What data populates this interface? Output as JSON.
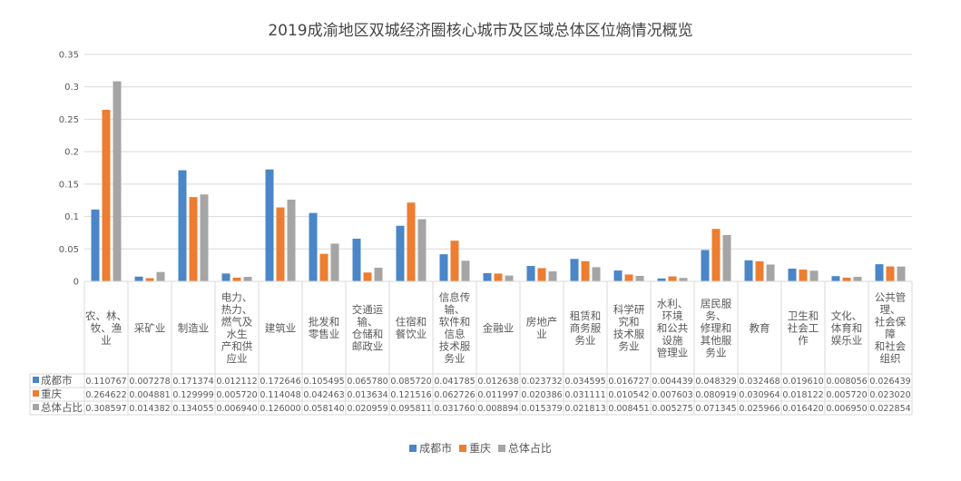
{
  "chart_data": {
    "type": "bar",
    "title": "2019成渝地区双城经济圈核心城市及区域总体区位熵情况概览",
    "xlabel": "",
    "ylabel": "",
    "ylim": [
      0,
      0.35
    ],
    "yticks": [
      "0",
      "0.05",
      "0.1",
      "0.15",
      "0.2",
      "0.25",
      "0.3",
      "0.35"
    ],
    "grid": true,
    "legend_position": "bottom",
    "data_table": true,
    "categories": [
      [
        "农、林、",
        "牧、渔",
        "业"
      ],
      [
        "采矿业"
      ],
      [
        "制造业"
      ],
      [
        "电力、",
        "热力、",
        "燃气及",
        "水生",
        "产和供",
        "应业"
      ],
      [
        "建筑业"
      ],
      [
        "批发和",
        "零售业"
      ],
      [
        "交通运",
        "输、",
        "仓储和",
        "邮政业"
      ],
      [
        "住宿和",
        "餐饮业"
      ],
      [
        "信息传",
        "输、",
        "软件和",
        "信息",
        "技术服",
        "务业"
      ],
      [
        "金融业"
      ],
      [
        "房地产",
        "业"
      ],
      [
        "租赁和",
        "商务服",
        "务业"
      ],
      [
        "科学研",
        "究和",
        "技术服",
        "务业"
      ],
      [
        "水利、",
        "环境",
        "和公共",
        "设施",
        "管理业"
      ],
      [
        "居民服",
        "务、",
        "修理和",
        "其他服",
        "务业"
      ],
      [
        "教育"
      ],
      [
        "卫生和",
        "社会工",
        "作"
      ],
      [
        "文化、",
        "体育和",
        "娱乐业"
      ],
      [
        "公共管",
        "理、",
        "社会保",
        "障",
        "和社会",
        "组织"
      ]
    ],
    "series": [
      {
        "name": "成都市",
        "color": "#4a86c8",
        "values": [
          0.110767,
          0.007278,
          0.171374,
          0.012112,
          0.172646,
          0.105495,
          0.06578,
          0.08572,
          0.041785,
          0.012638,
          0.023732,
          0.034595,
          0.016727,
          0.004439,
          0.048329,
          0.032468,
          0.01961,
          0.008056,
          0.026439
        ],
        "labels": [
          "0.110767",
          "0.007278",
          "0.171374",
          "0.012112",
          "0.172646",
          "0.105495",
          "0.065780",
          "0.085720",
          "0.041785",
          "0.012638",
          "0.023732",
          "0.034595",
          "0.016727",
          "0.004439",
          "0.048329",
          "0.032468",
          "0.019610",
          "0.008056",
          "0.026439"
        ]
      },
      {
        "name": "重庆",
        "color": "#ed7d31",
        "values": [
          0.264622,
          0.004881,
          0.129999,
          0.00572,
          0.114048,
          0.042463,
          0.013634,
          0.121516,
          0.062726,
          0.011997,
          0.020386,
          0.031111,
          0.010542,
          0.007603,
          0.080919,
          0.030964,
          0.018122,
          0.00572,
          0.02302
        ],
        "labels": [
          "0.264622",
          "0.004881",
          "0.129999",
          "0.005720",
          "0.114048",
          "0.042463",
          "0.013634",
          "0.121516",
          "0.062726",
          "0.011997",
          "0.020386",
          "0.031111",
          "0.010542",
          "0.007603",
          "0.080919",
          "0.030964",
          "0.018122",
          "0.005720",
          "0.023020"
        ]
      },
      {
        "name": "总体占比",
        "color": "#a5a5a5",
        "values": [
          0.308597,
          0.014382,
          0.134055,
          0.00694,
          0.126,
          0.05814,
          0.020959,
          0.095811,
          0.03176,
          0.008894,
          0.015379,
          0.021813,
          0.008451,
          0.005275,
          0.071345,
          0.025966,
          0.01642,
          0.00695,
          0.022854
        ],
        "labels": [
          "0.308597",
          "0.014382",
          "0.134055",
          "0.006940",
          "0.126000",
          "0.058140",
          "0.020959",
          "0.095811",
          "0.031760",
          "0.008894",
          "0.015379",
          "0.021813",
          "0.008451",
          "0.005275",
          "0.071345",
          "0.025966",
          "0.016420",
          "0.006950",
          "0.022854"
        ]
      }
    ]
  }
}
